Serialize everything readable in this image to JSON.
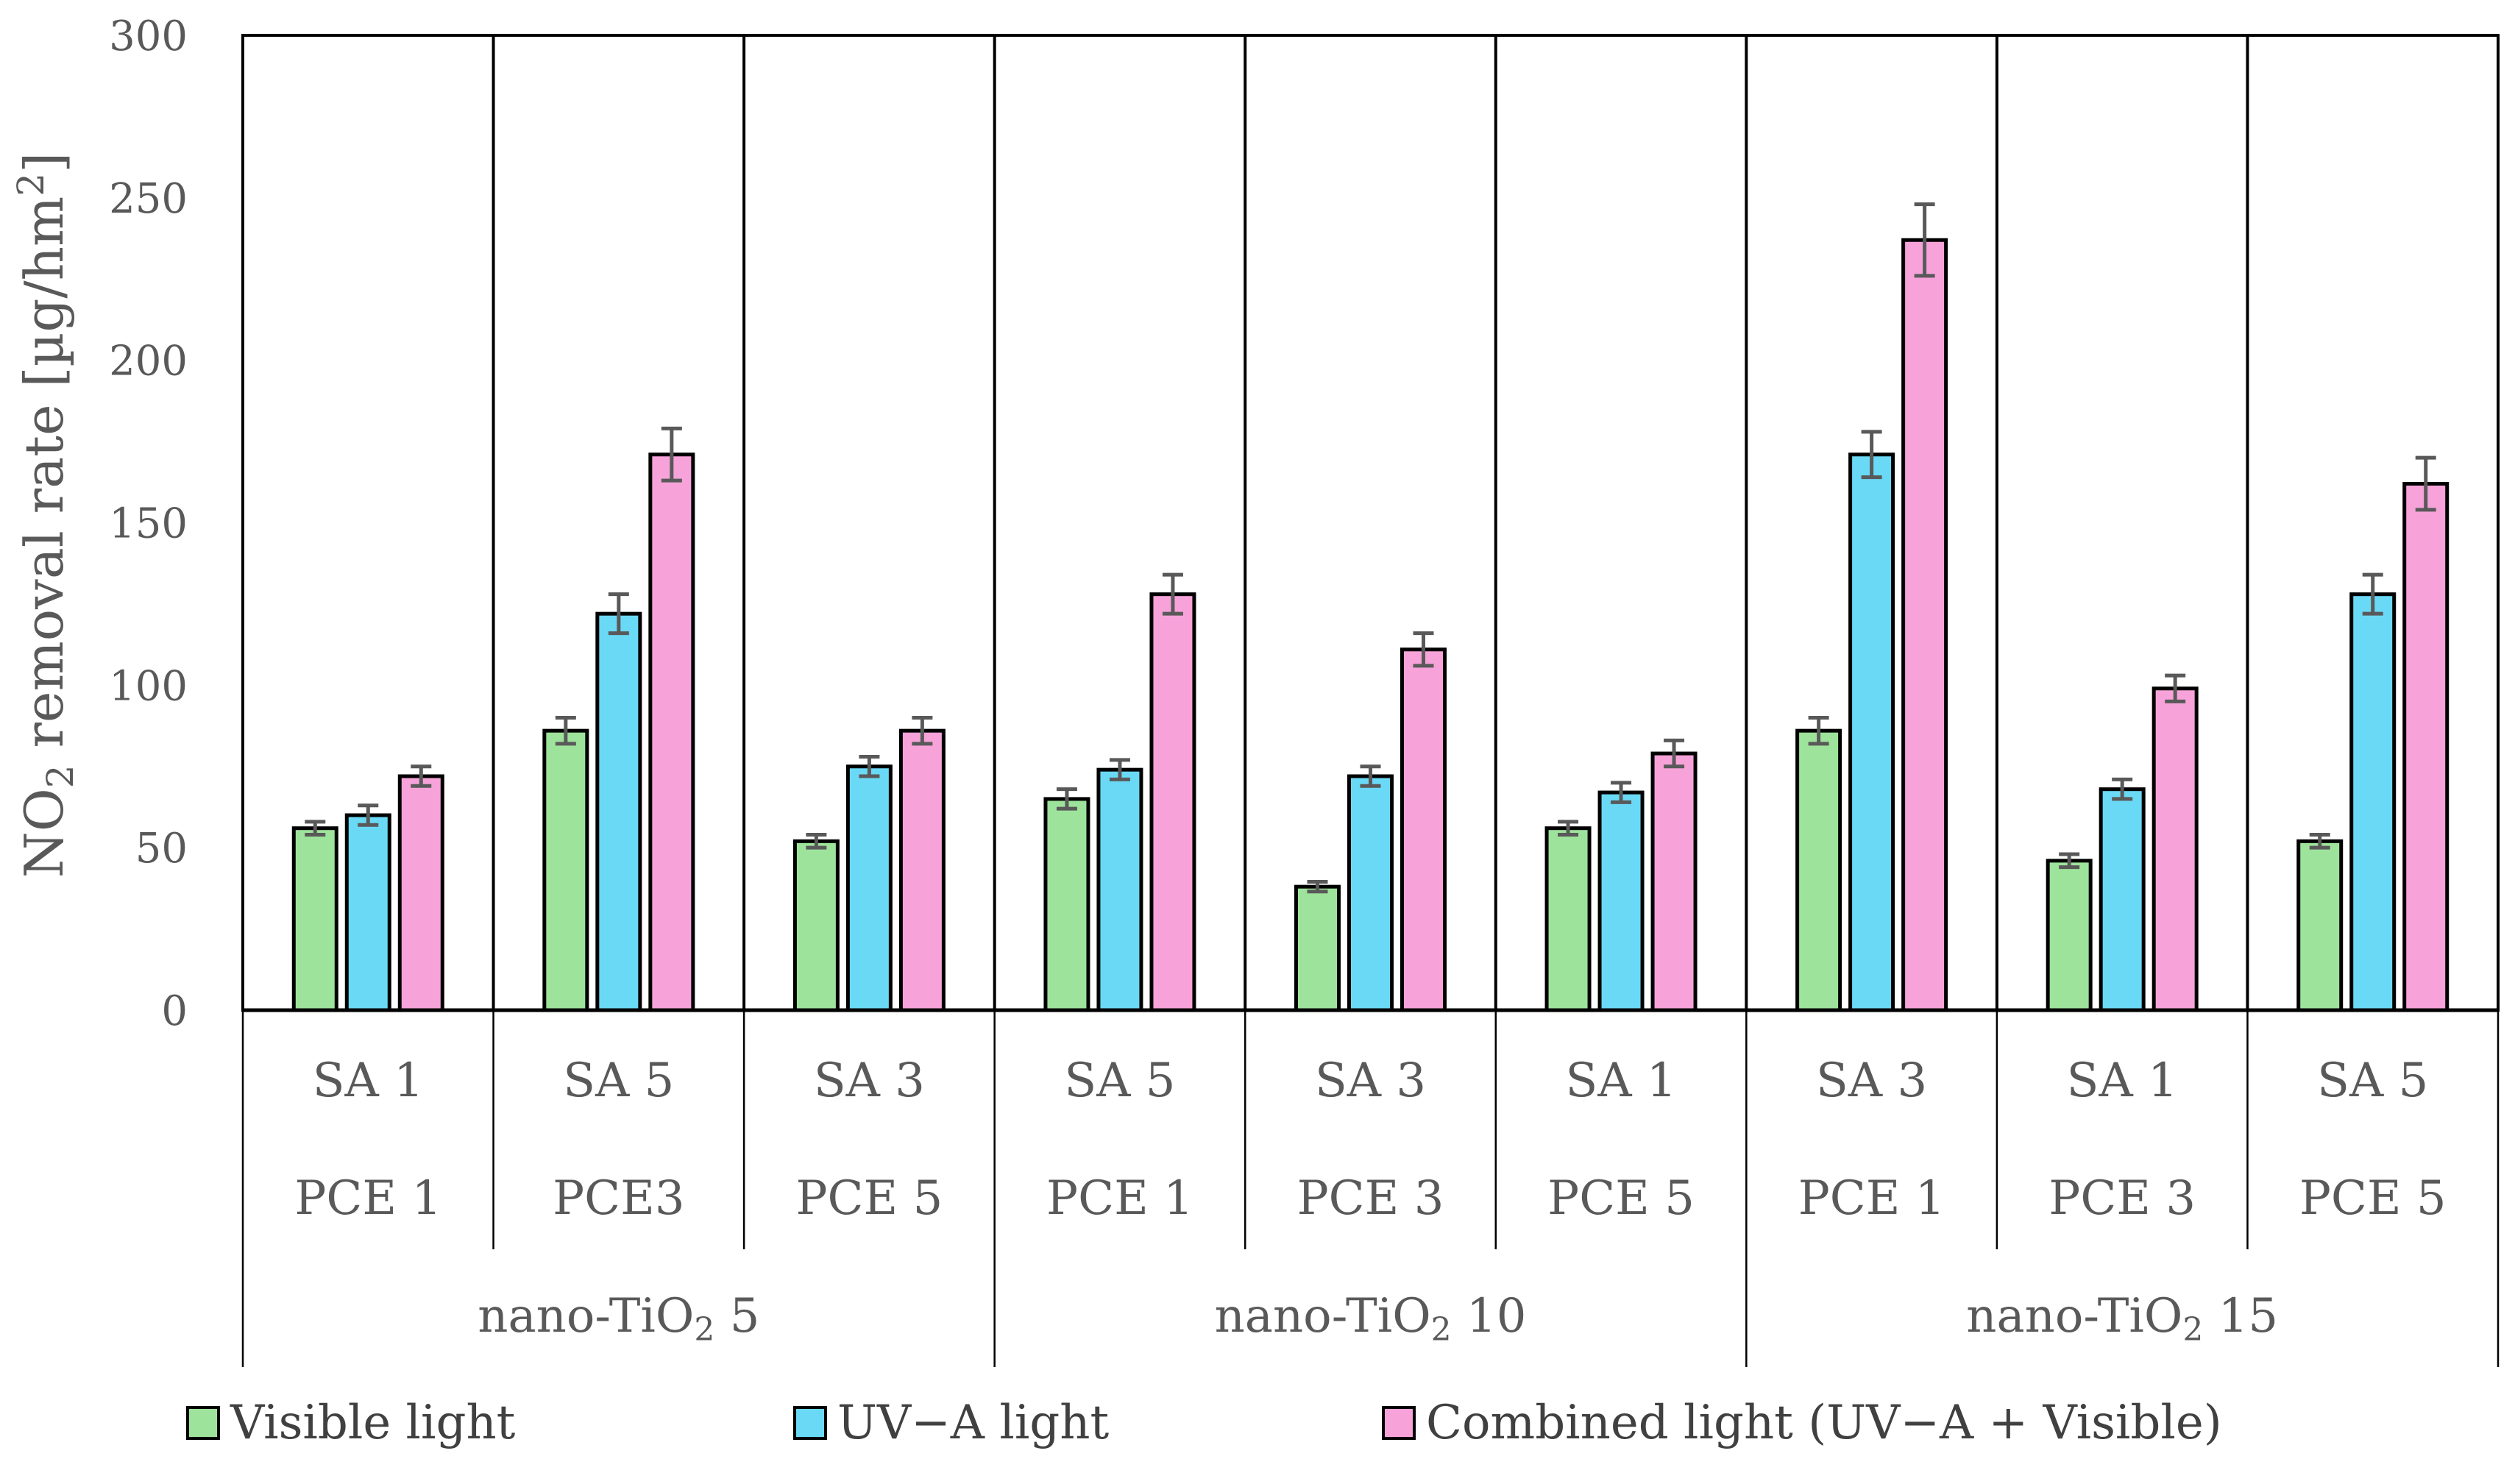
{
  "chart_data": {
    "type": "bar",
    "title": "",
    "ylabel": {
      "prefix": "NO",
      "sub": "2",
      "mid": " removal rate [µg/hm",
      "sup": "2",
      "suffix": "]"
    },
    "ylim": [
      0,
      300
    ],
    "yticks": [
      0,
      50,
      100,
      150,
      200,
      250,
      300
    ],
    "groups": [
      {
        "label": "nano-TiO",
        "sub": "2",
        "suffix": " 5",
        "categories": [
          {
            "sa": "SA 1",
            "pce": "PCE 1"
          },
          {
            "sa": "SA 5",
            "pce": "PCE3"
          },
          {
            "sa": "SA 3",
            "pce": "PCE 5"
          }
        ]
      },
      {
        "label": "nano-TiO",
        "sub": "2",
        "suffix": " 10",
        "categories": [
          {
            "sa": "SA 5",
            "pce": "PCE 1"
          },
          {
            "sa": "SA 3",
            "pce": "PCE 3"
          },
          {
            "sa": "SA 1",
            "pce": "PCE 5"
          }
        ]
      },
      {
        "label": "nano-TiO",
        "sub": "2",
        "suffix": " 15",
        "categories": [
          {
            "sa": "SA 3",
            "pce": "PCE 1"
          },
          {
            "sa": "SA 1",
            "pce": "PCE 3"
          },
          {
            "sa": "SA 5",
            "pce": "PCE 5"
          }
        ]
      }
    ],
    "series": [
      {
        "name": "Visible light",
        "color": "#9ee39b",
        "values": [
          56,
          86,
          52,
          65,
          38,
          56,
          86,
          46,
          52
        ],
        "errors": [
          2,
          4,
          2,
          3,
          1.5,
          2,
          4,
          2,
          2
        ]
      },
      {
        "name": "UV−A light",
        "color": "#6ad9f5",
        "values": [
          60,
          122,
          75,
          74,
          72,
          67,
          171,
          68,
          128
        ],
        "errors": [
          3,
          6,
          3,
          3,
          3,
          3,
          7,
          3,
          6
        ]
      },
      {
        "name": "Combined light (UV−A + Visible)",
        "color": "#f7a3da",
        "values": [
          72,
          171,
          86,
          128,
          111,
          79,
          237,
          99,
          162
        ],
        "errors": [
          3,
          8,
          4,
          6,
          5,
          4,
          11,
          4,
          8
        ]
      }
    ],
    "legend_position": "bottom"
  }
}
